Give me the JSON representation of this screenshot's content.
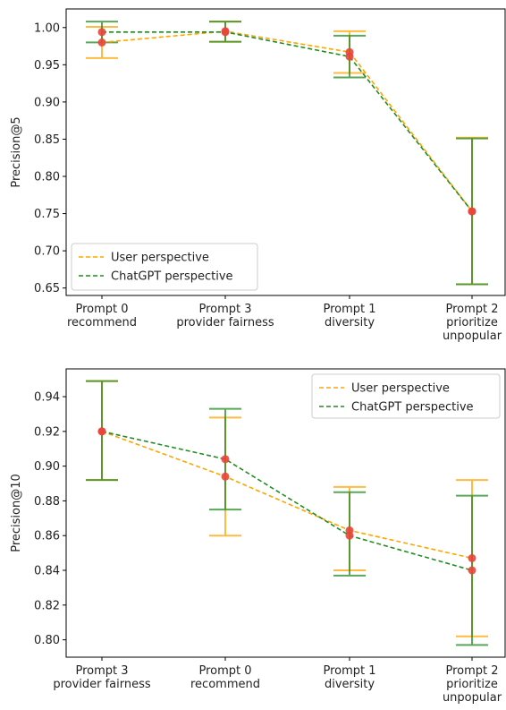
{
  "chart_data": [
    {
      "type": "line",
      "ylabel": "Precision@5",
      "ylim": [
        0.64,
        1.025
      ],
      "yticks": [
        "0.65",
        "0.70",
        "0.75",
        "0.80",
        "0.85",
        "0.90",
        "0.95",
        "1.00"
      ],
      "categories": [
        [
          "Prompt 0",
          "recommend"
        ],
        [
          "Prompt 3",
          "provider fairness"
        ],
        [
          "Prompt 1",
          "diversity"
        ],
        [
          "Prompt 2",
          "prioritize",
          "unpopular"
        ]
      ],
      "legend_position": "lower-left",
      "series": [
        {
          "name": "User perspective",
          "color": "#ffa500",
          "style": "dashed",
          "values": [
            0.98,
            0.995,
            0.967,
            0.753
          ],
          "err_low": [
            0.959,
            0.981,
            0.939,
            0.655
          ],
          "err_high": [
            1.001,
            1.008,
            0.995,
            0.852
          ]
        },
        {
          "name": "ChatGPT perspective",
          "color": "#228b22",
          "style": "dashed",
          "values": [
            0.994,
            0.994,
            0.961,
            0.753
          ],
          "err_low": [
            0.98,
            0.981,
            0.933,
            0.655
          ],
          "err_high": [
            1.008,
            1.008,
            0.989,
            0.851
          ]
        }
      ],
      "marker_color": "#e8463a"
    },
    {
      "type": "line",
      "ylabel": "Precision@10",
      "ylim": [
        0.79,
        0.956
      ],
      "yticks": [
        "0.80",
        "0.82",
        "0.84",
        "0.86",
        "0.88",
        "0.90",
        "0.92",
        "0.94"
      ],
      "categories": [
        [
          "Prompt 3",
          "provider fairness"
        ],
        [
          "Prompt 0",
          "recommend"
        ],
        [
          "Prompt 1",
          "diversity"
        ],
        [
          "Prompt 2",
          "prioritize",
          "unpopular"
        ]
      ],
      "legend_position": "upper-right",
      "series": [
        {
          "name": "User perspective",
          "color": "#ffa500",
          "style": "dashed",
          "values": [
            0.92,
            0.894,
            0.863,
            0.847
          ],
          "err_low": [
            0.892,
            0.86,
            0.84,
            0.802
          ],
          "err_high": [
            0.949,
            0.928,
            0.888,
            0.892
          ]
        },
        {
          "name": "ChatGPT perspective",
          "color": "#228b22",
          "style": "dashed",
          "values": [
            0.92,
            0.904,
            0.86,
            0.84
          ],
          "err_low": [
            0.892,
            0.875,
            0.837,
            0.797
          ],
          "err_high": [
            0.949,
            0.933,
            0.885,
            0.883
          ]
        }
      ],
      "marker_color": "#e8463a"
    }
  ]
}
